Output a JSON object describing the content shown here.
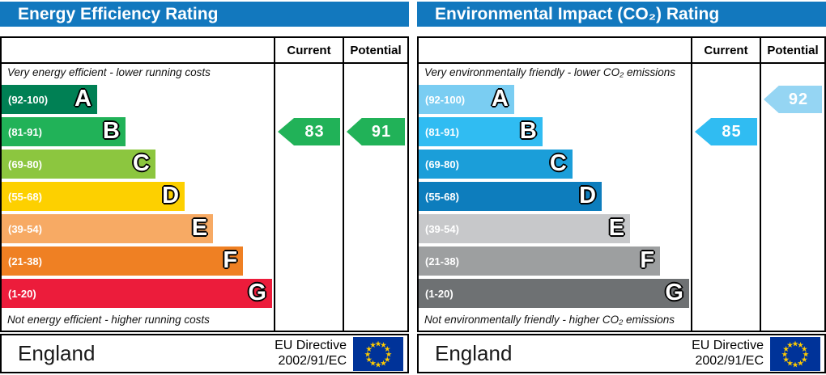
{
  "chart_data": [
    {
      "type": "bar",
      "title": "Energy Efficiency Rating",
      "categories": [
        "A (92-100)",
        "B (81-91)",
        "C (69-80)",
        "D (55-68)",
        "E (39-54)",
        "F (21-38)",
        "G (1-20)"
      ],
      "values": [
        35.1,
        45.5,
        56.5,
        67.3,
        77.7,
        88.7,
        99.4
      ],
      "ylabel": "bar length as % of column width",
      "current": 83,
      "current_band": "B",
      "potential": 91,
      "potential_band": "B",
      "legend_position": "columns right: Current / Potential"
    },
    {
      "type": "bar",
      "title": "Environmental Impact (CO₂) Rating",
      "categories": [
        "A (92-100)",
        "B (81-91)",
        "C (69-80)",
        "D (55-68)",
        "E (39-54)",
        "F (21-38)",
        "G (1-20)"
      ],
      "values": [
        35.1,
        45.5,
        56.5,
        67.3,
        77.7,
        88.7,
        99.4
      ],
      "ylabel": "bar length as % of column width",
      "current": 85,
      "current_band": "B",
      "potential": 92,
      "potential_band": "A",
      "legend_position": "columns right: Current / Potential"
    }
  ],
  "panels": [
    {
      "title": "Energy Efficiency Rating",
      "current_label": "Current",
      "potential_label": "Potential",
      "top_caption": "Very energy efficient - lower running costs",
      "bottom_caption": "Not energy efficient - higher running costs",
      "header_color": "#1278be",
      "bands": [
        {
          "letter": "A",
          "range": "(92-100)",
          "color": "#008054",
          "width_pct": 35.1
        },
        {
          "letter": "B",
          "range": "(81-91)",
          "color": "#21b258",
          "width_pct": 45.5
        },
        {
          "letter": "C",
          "range": "(69-80)",
          "color": "#8cc63f",
          "width_pct": 56.5
        },
        {
          "letter": "D",
          "range": "(55-68)",
          "color": "#fdd000",
          "width_pct": 67.3
        },
        {
          "letter": "E",
          "range": "(39-54)",
          "color": "#f7aa64",
          "width_pct": 77.7
        },
        {
          "letter": "F",
          "range": "(21-38)",
          "color": "#ef8023",
          "width_pct": 88.7
        },
        {
          "letter": "G",
          "range": "(1-20)",
          "color": "#ec1c3b",
          "width_pct": 99.4
        }
      ],
      "current": {
        "value": "83",
        "color": "#21b258",
        "band": "B"
      },
      "potential": {
        "value": "91",
        "color": "#21b258",
        "band": "B"
      },
      "footer": {
        "region": "England",
        "directive_line1": "EU Directive",
        "directive_line2": "2002/91/EC"
      },
      "flag": {
        "field_color": "#003399",
        "star_color": "#ffcc00"
      }
    },
    {
      "title": "Environmental Impact (CO₂) Rating",
      "current_label": "Current",
      "potential_label": "Potential",
      "top_caption": "Very environmentally friendly - lower CO₂ emissions",
      "bottom_caption": "Not environmentally friendly - higher CO₂ emissions",
      "header_color": "#1278be",
      "bands": [
        {
          "letter": "A",
          "range": "(92-100)",
          "color": "#7acdf2",
          "width_pct": 35.1
        },
        {
          "letter": "B",
          "range": "(81-91)",
          "color": "#30bcf2",
          "width_pct": 45.5
        },
        {
          "letter": "C",
          "range": "(69-80)",
          "color": "#1b9ed9",
          "width_pct": 56.5
        },
        {
          "letter": "D",
          "range": "(55-68)",
          "color": "#0d7dbd",
          "width_pct": 67.3
        },
        {
          "letter": "E",
          "range": "(39-54)",
          "color": "#c7c8ca",
          "width_pct": 77.7
        },
        {
          "letter": "F",
          "range": "(21-38)",
          "color": "#9d9fa0",
          "width_pct": 88.7
        },
        {
          "letter": "G",
          "range": "(1-20)",
          "color": "#6e7173",
          "width_pct": 99.4
        }
      ],
      "current": {
        "value": "85",
        "color": "#30bcf2",
        "band": "B"
      },
      "potential": {
        "value": "92",
        "color": "#95d5f3",
        "band": "A"
      },
      "footer": {
        "region": "England",
        "directive_line1": "EU Directive",
        "directive_line2": "2002/91/EC"
      },
      "flag": {
        "field_color": "#003399",
        "star_color": "#ffcc00"
      }
    }
  ]
}
